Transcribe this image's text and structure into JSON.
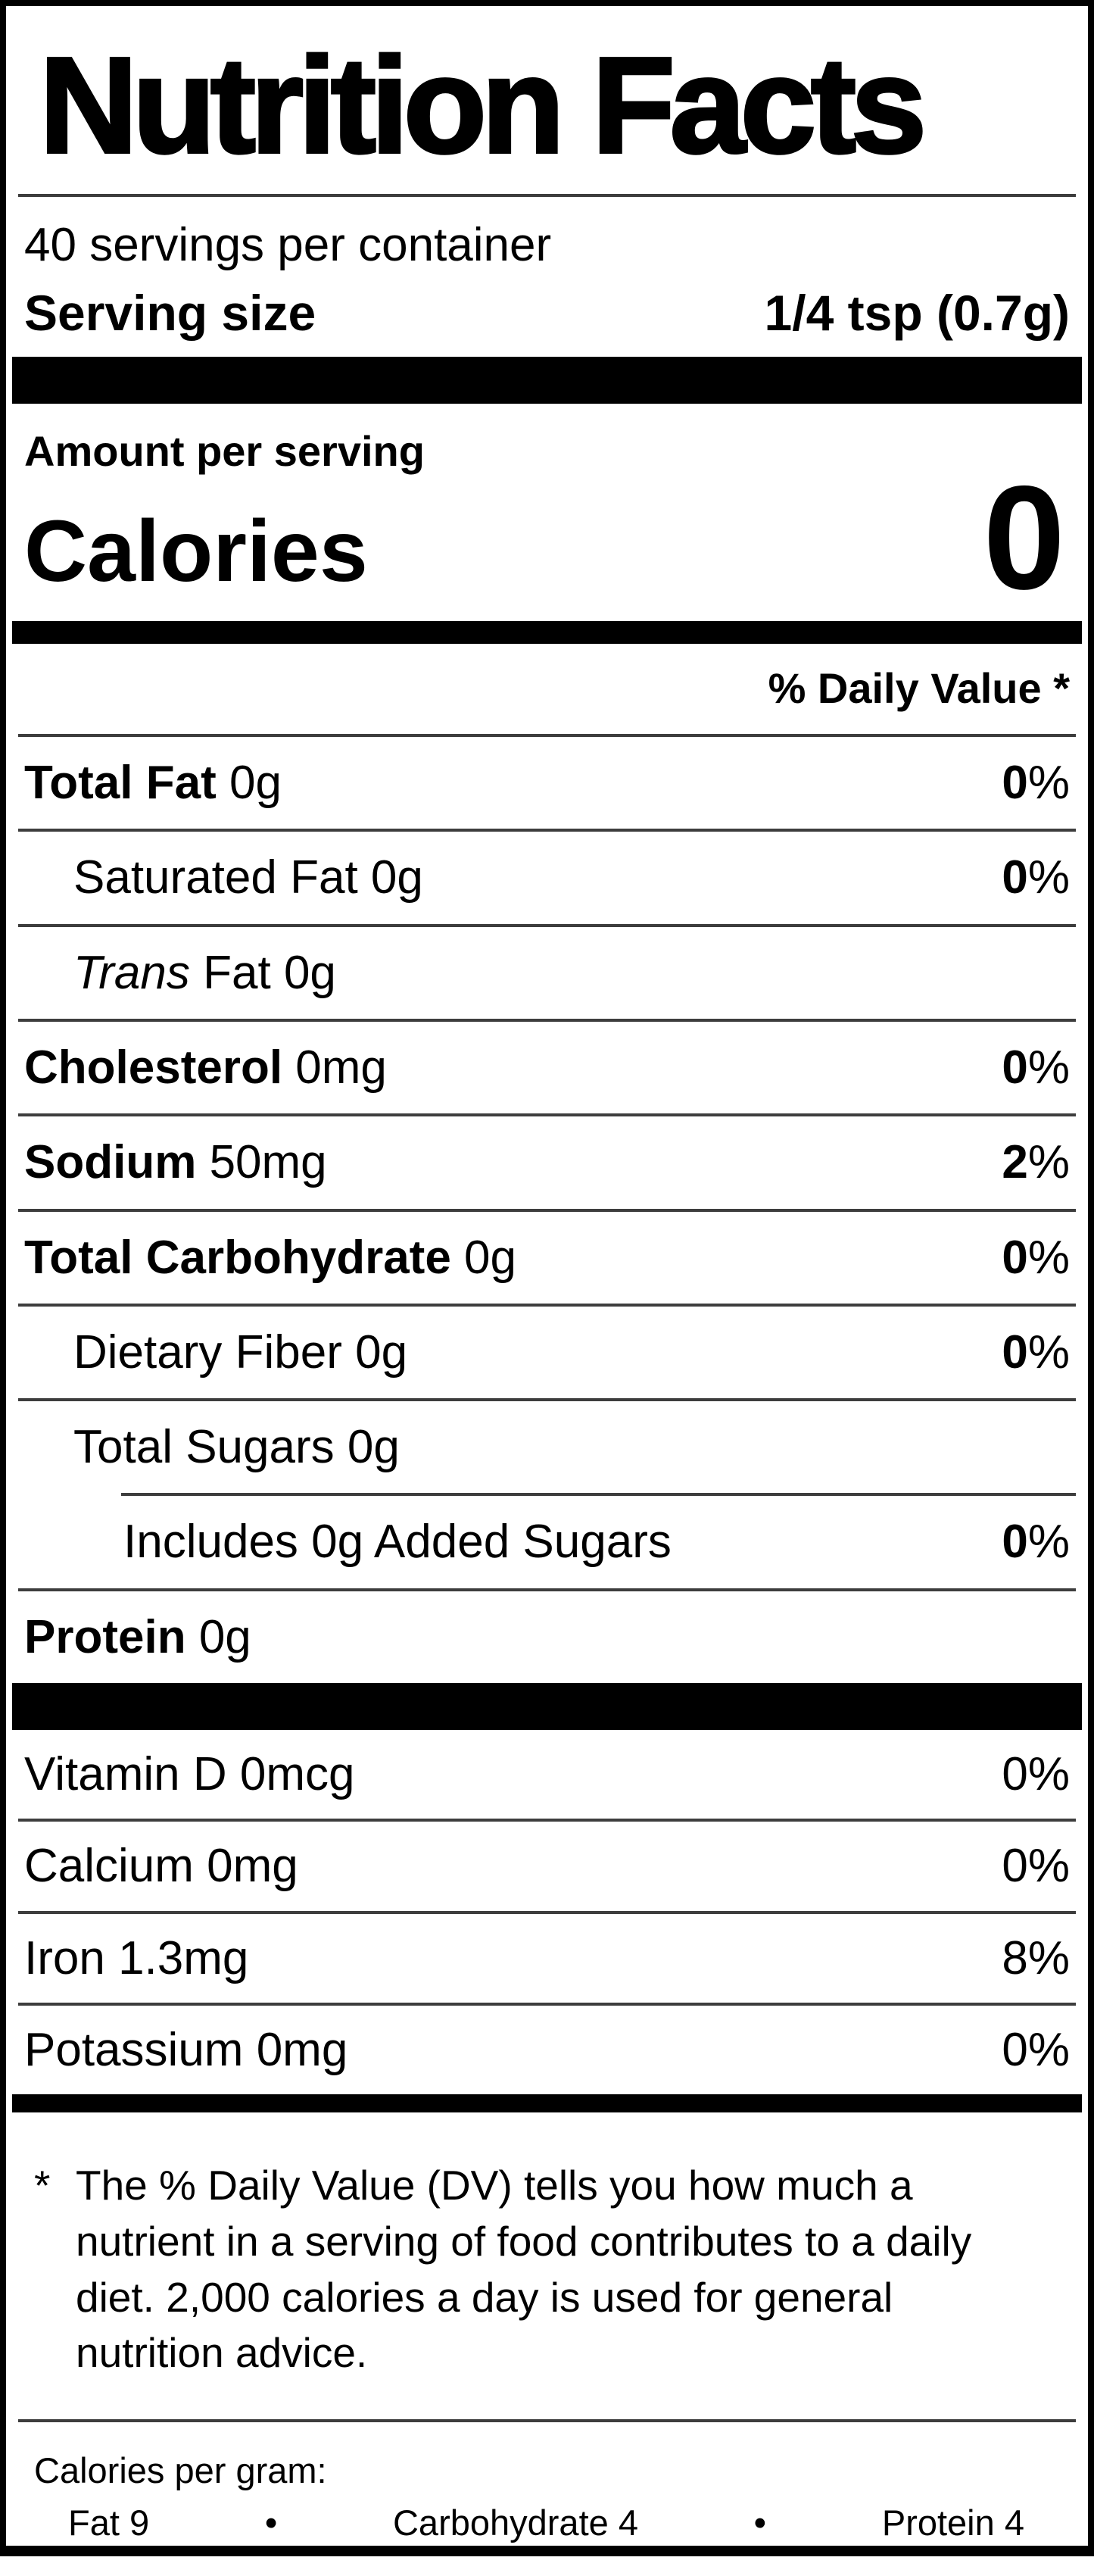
{
  "title": "Nutrition Facts",
  "servings_per_container": "40 servings per container",
  "serving_size": {
    "label": "Serving size",
    "value": "1/4 tsp (0.7g)"
  },
  "amount_per_serving": "Amount per serving",
  "calories": {
    "label": "Calories",
    "value": "0"
  },
  "daily_value_header": "% Daily Value *",
  "rows": [
    {
      "name": "Total Fat",
      "amount": "0g",
      "pct_num": "0",
      "pct_sign": "%"
    },
    {
      "name": "Saturated Fat",
      "amount": "0g",
      "pct_num": "0",
      "pct_sign": "%"
    },
    {
      "name_italic": "Trans",
      "name": "Fat",
      "amount": "0g"
    },
    {
      "name": "Cholesterol",
      "amount": "0mg",
      "pct_num": "0",
      "pct_sign": "%"
    },
    {
      "name": "Sodium",
      "amount": "50mg",
      "pct_num": "2",
      "pct_sign": "%"
    },
    {
      "name": "Total Carbohydrate",
      "amount": "0g",
      "pct_num": "0",
      "pct_sign": "%"
    },
    {
      "name": "Dietary Fiber",
      "amount": "0g",
      "pct_num": "0",
      "pct_sign": "%"
    },
    {
      "name": "Total Sugars",
      "amount": "0g"
    },
    {
      "name": "Includes 0g Added Sugars",
      "pct_num": "0",
      "pct_sign": "%"
    },
    {
      "name": "Protein",
      "amount": "0g"
    }
  ],
  "vitamins": [
    {
      "name": "Vitamin D",
      "amount": "0mcg",
      "pct": "0%"
    },
    {
      "name": "Calcium",
      "amount": "0mg",
      "pct": "0%"
    },
    {
      "name": "Iron",
      "amount": "1.3mg",
      "pct": "8%"
    },
    {
      "name": "Potassium",
      "amount": "0mg",
      "pct": "0%"
    }
  ],
  "footnote": {
    "marker": "*",
    "text": "The % Daily Value (DV) tells you how much a nutrient in a serving of food contributes to a daily diet. 2,000 calories a day is used for general nutrition advice."
  },
  "calories_per_gram": {
    "label": "Calories per gram:",
    "fat": "Fat 9",
    "carbohydrate": "Carbohydrate 4",
    "protein": "Protein 4",
    "bullet": "•"
  }
}
